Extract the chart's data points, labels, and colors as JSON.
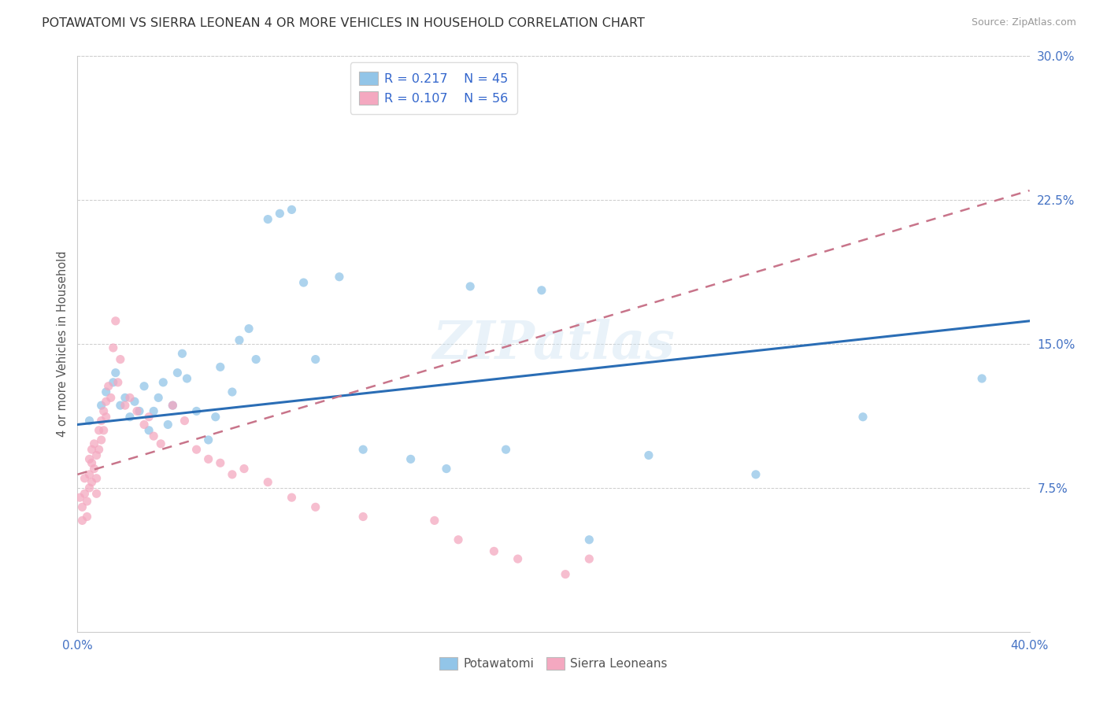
{
  "title": "POTAWATOMI VS SIERRA LEONEAN 4 OR MORE VEHICLES IN HOUSEHOLD CORRELATION CHART",
  "source": "Source: ZipAtlas.com",
  "ylabel": "4 or more Vehicles in Household",
  "xlim": [
    0.0,
    0.4
  ],
  "ylim": [
    0.0,
    0.3
  ],
  "color_blue": "#92c5e8",
  "color_pink": "#f4a8c0",
  "trendline_blue": "#2a6db5",
  "trendline_pink": "#c8748a",
  "watermark": "ZIPatlas",
  "potawatomi_x": [
    0.005,
    0.01,
    0.012,
    0.015,
    0.016,
    0.018,
    0.02,
    0.022,
    0.024,
    0.026,
    0.028,
    0.03,
    0.032,
    0.034,
    0.036,
    0.038,
    0.04,
    0.042,
    0.044,
    0.046,
    0.05,
    0.055,
    0.058,
    0.06,
    0.065,
    0.068,
    0.072,
    0.075,
    0.08,
    0.085,
    0.09,
    0.095,
    0.1,
    0.11,
    0.12,
    0.14,
    0.155,
    0.165,
    0.18,
    0.195,
    0.215,
    0.24,
    0.285,
    0.33,
    0.38
  ],
  "potawatomi_y": [
    0.11,
    0.118,
    0.125,
    0.13,
    0.135,
    0.118,
    0.122,
    0.112,
    0.12,
    0.115,
    0.128,
    0.105,
    0.115,
    0.122,
    0.13,
    0.108,
    0.118,
    0.135,
    0.145,
    0.132,
    0.115,
    0.1,
    0.112,
    0.138,
    0.125,
    0.152,
    0.158,
    0.142,
    0.215,
    0.218,
    0.22,
    0.182,
    0.142,
    0.185,
    0.095,
    0.09,
    0.085,
    0.18,
    0.095,
    0.178,
    0.048,
    0.092,
    0.082,
    0.112,
    0.132
  ],
  "sierra_leone_x": [
    0.001,
    0.002,
    0.002,
    0.003,
    0.003,
    0.004,
    0.004,
    0.005,
    0.005,
    0.005,
    0.006,
    0.006,
    0.006,
    0.007,
    0.007,
    0.008,
    0.008,
    0.008,
    0.009,
    0.009,
    0.01,
    0.01,
    0.011,
    0.011,
    0.012,
    0.012,
    0.013,
    0.014,
    0.015,
    0.016,
    0.017,
    0.018,
    0.02,
    0.022,
    0.025,
    0.028,
    0.03,
    0.032,
    0.035,
    0.04,
    0.045,
    0.05,
    0.055,
    0.06,
    0.065,
    0.07,
    0.08,
    0.09,
    0.1,
    0.12,
    0.15,
    0.16,
    0.175,
    0.185,
    0.205,
    0.215
  ],
  "sierra_leone_y": [
    0.07,
    0.065,
    0.058,
    0.08,
    0.072,
    0.068,
    0.06,
    0.09,
    0.082,
    0.075,
    0.095,
    0.088,
    0.078,
    0.098,
    0.085,
    0.092,
    0.08,
    0.072,
    0.105,
    0.095,
    0.11,
    0.1,
    0.115,
    0.105,
    0.12,
    0.112,
    0.128,
    0.122,
    0.148,
    0.162,
    0.13,
    0.142,
    0.118,
    0.122,
    0.115,
    0.108,
    0.112,
    0.102,
    0.098,
    0.118,
    0.11,
    0.095,
    0.09,
    0.088,
    0.082,
    0.085,
    0.078,
    0.07,
    0.065,
    0.06,
    0.058,
    0.048,
    0.042,
    0.038,
    0.03,
    0.038
  ]
}
